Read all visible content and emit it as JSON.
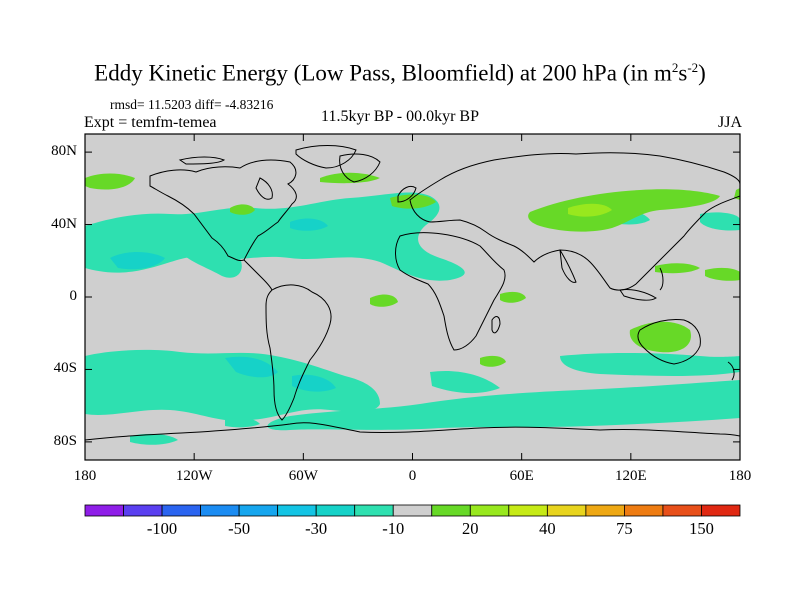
{
  "title": {
    "main": "Eddy Kinetic Energy (Low Pass, Bloomfield) at 200 hPa (in m",
    "sup1": "2",
    "mid": "s",
    "sup2": "-2",
    "end": ")"
  },
  "stats": "rmsd= 11.5203 diff= -4.83216",
  "expt": "Expt = temfm-temea",
  "subtitle": "11.5kyr BP - 00.0kyr BP",
  "season": "JJA",
  "y_axis": [
    {
      "label": "80N",
      "lat": 80
    },
    {
      "label": "40N",
      "lat": 40
    },
    {
      "label": "0",
      "lat": 0
    },
    {
      "label": "40S",
      "lat": -40
    },
    {
      "label": "80S",
      "lat": -80
    }
  ],
  "x_axis": [
    {
      "label": "180",
      "lon": -180
    },
    {
      "label": "120W",
      "lon": -120
    },
    {
      "label": "60W",
      "lon": -60
    },
    {
      "label": "0",
      "lon": 0
    },
    {
      "label": "60E",
      "lon": 60
    },
    {
      "label": "120E",
      "lon": 120
    },
    {
      "label": "180",
      "lon": 180
    }
  ],
  "colorbar": {
    "colors": [
      "#8f1ee8",
      "#5a3ff0",
      "#2a64f0",
      "#1b8cf2",
      "#16a6ee",
      "#13c4e4",
      "#16d2c8",
      "#2ee0b0",
      "#cfcfcf",
      "#67d927",
      "#98e81e",
      "#c6ea16",
      "#e8d41e",
      "#eea814",
      "#ee7c12",
      "#e8501a",
      "#e02812"
    ],
    "labels": [
      {
        "text": "-100",
        "boundary": 2
      },
      {
        "text": "-50",
        "boundary": 4
      },
      {
        "text": "-30",
        "boundary": 6
      },
      {
        "text": "-10",
        "boundary": 8
      },
      {
        "text": "20",
        "boundary": 10
      },
      {
        "text": "40",
        "boundary": 12
      },
      {
        "text": "75",
        "boundary": 14
      },
      {
        "text": "150",
        "boundary": 16
      }
    ]
  },
  "map": {
    "background_color": "#cfcfcf",
    "negative_color": "#2ee0b0",
    "strong_negative_color": "#16d2c8",
    "positive_color": "#67d927",
    "strong_positive_color": "#98e81e",
    "coast_color": "#000000"
  }
}
